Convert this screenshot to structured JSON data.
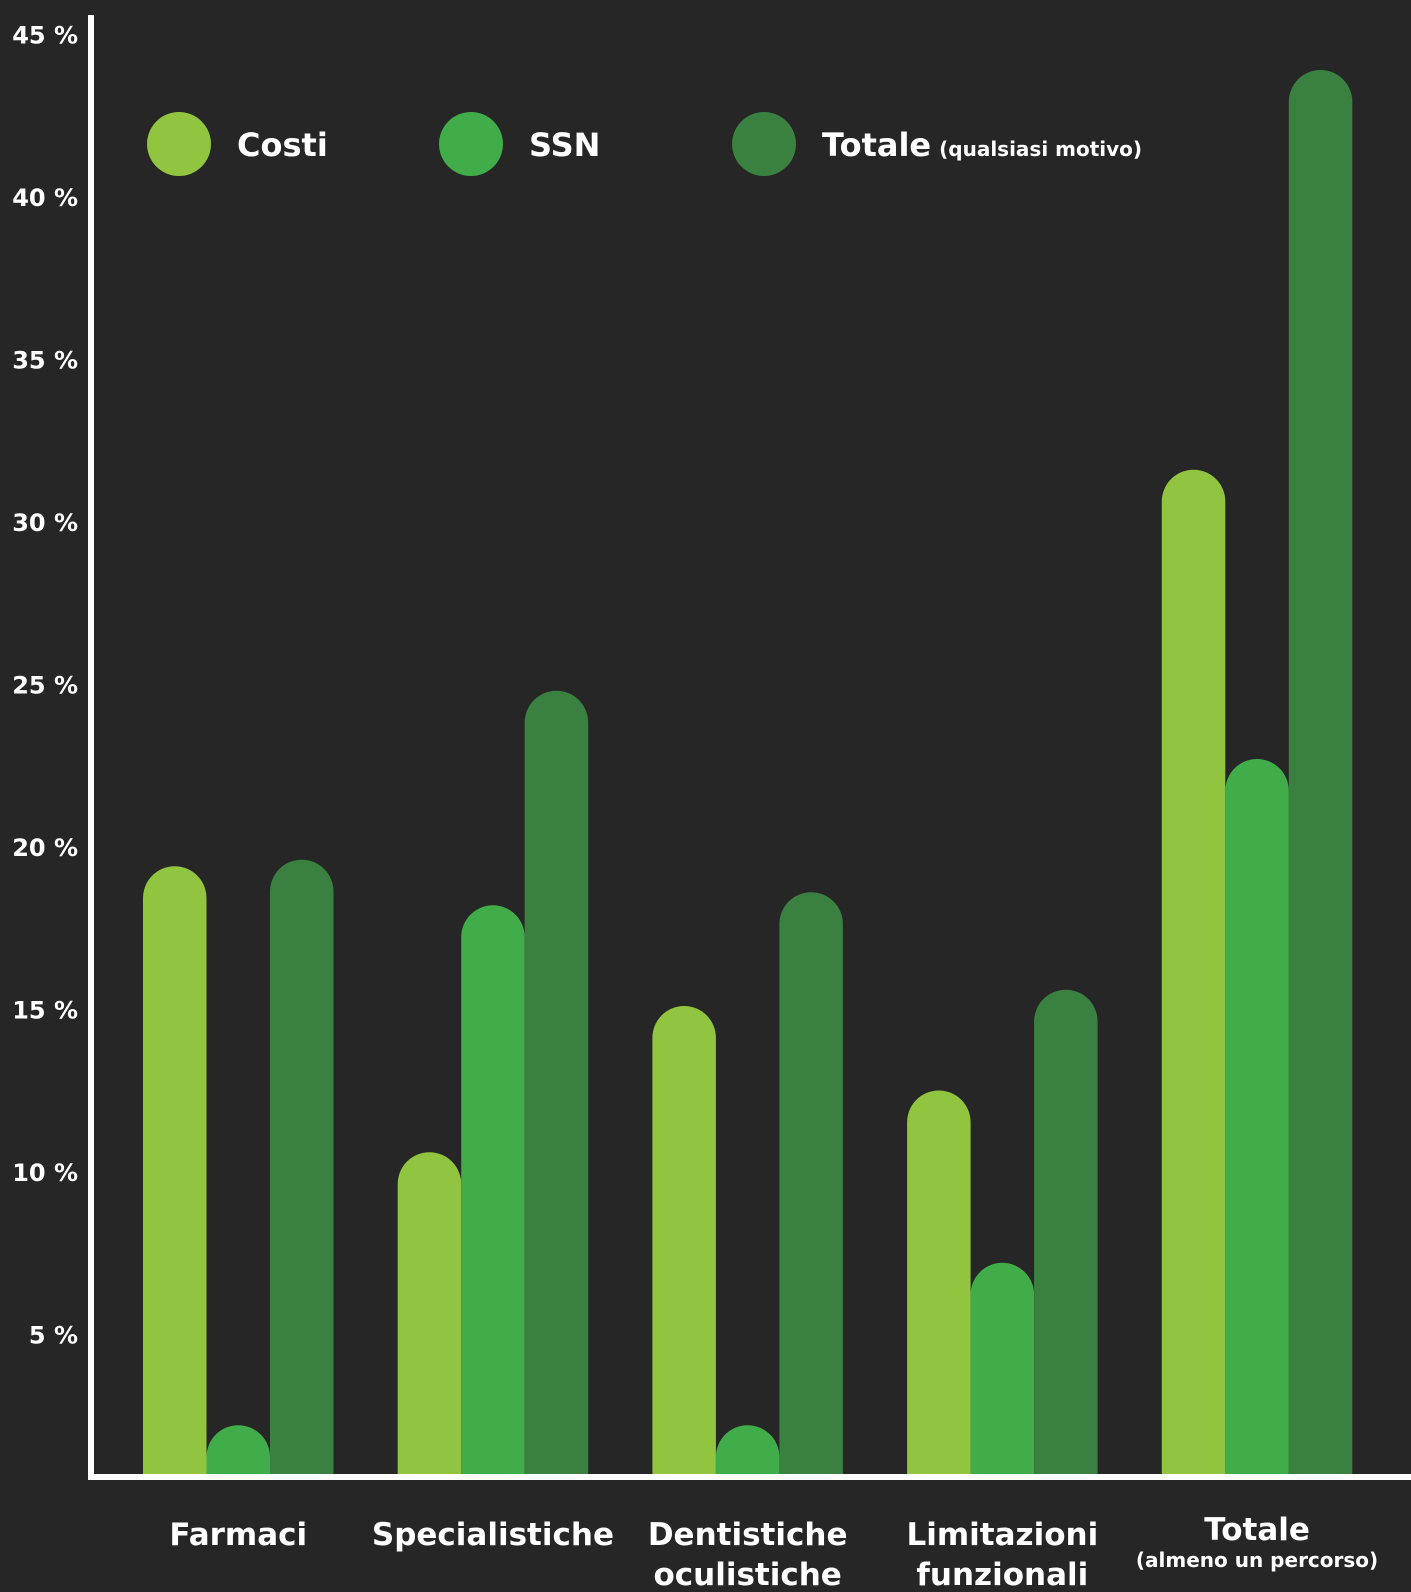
{
  "chart_data": {
    "type": "bar",
    "categories": [
      [
        "Farmaci"
      ],
      [
        "Specialistiche"
      ],
      [
        "Dentistiche",
        "oculistiche"
      ],
      [
        "Limitazioni",
        "funzionali"
      ],
      [
        "Totale"
      ]
    ],
    "category_sublabels": [
      "",
      "",
      "",
      "",
      "(almeno un percorso)"
    ],
    "series": [
      {
        "name": "Costi",
        "sublabel": "",
        "color": "#92C53F",
        "values": [
          19.4,
          10.6,
          15.1,
          12.5,
          31.6
        ]
      },
      {
        "name": "SSN",
        "sublabel": "",
        "color": "#41AD4A",
        "values": [
          2.2,
          18.2,
          2.2,
          7.2,
          22.7
        ]
      },
      {
        "name": "Totale",
        "sublabel": "(qualsiasi motivo)",
        "color": "#3A8040",
        "values": [
          19.6,
          24.8,
          18.6,
          15.6,
          43.9
        ]
      }
    ],
    "yticks": [
      "5 %",
      "10 %",
      "15 %",
      "20 %",
      "25 %",
      "30 %",
      "35 %",
      "40 %",
      "45 %"
    ],
    "ylim": [
      0.7,
      45
    ],
    "grid": false,
    "legend": "top-left",
    "title": "",
    "xlabel": "",
    "ylabel": ""
  }
}
